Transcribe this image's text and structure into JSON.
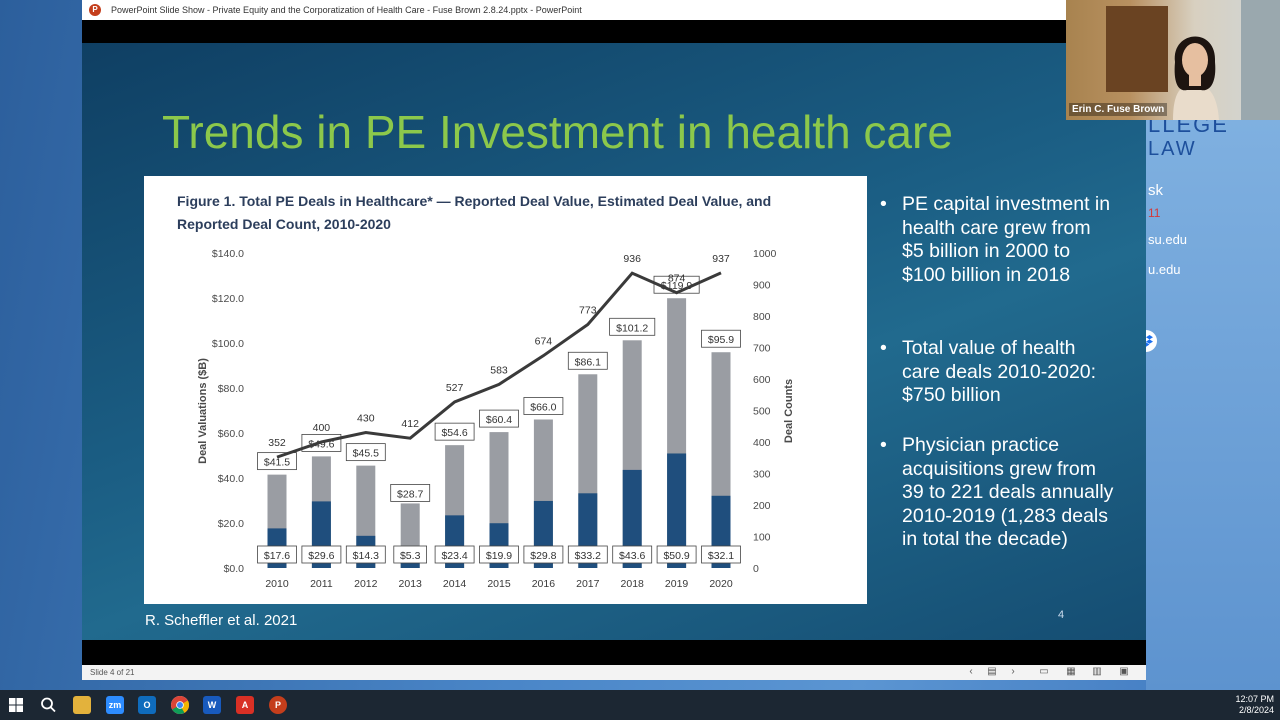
{
  "desktop_bg": {
    "college": "LLEGE",
    "law": "LAW",
    "line1": "sk",
    "line2": "11",
    "line3": "su.edu",
    "line4": "u.edu"
  },
  "ppt": {
    "title": "PowerPoint Slide Show  -  Private Equity and the Corporatization of Health Care - Fuse Brown 2.8.24.pptx  -  PowerPoint",
    "status": "Slide 4 of 21"
  },
  "slide": {
    "title": "Trends in PE Investment in health care",
    "bullets": [
      "PE capital investment in health care grew from $5 billion in 2000 to $100 billion in 2018",
      "Total value of health care deals 2010-2020: $750 billion",
      "Physician practice acquisitions grew from 39 to 221 deals annually 2010-2019 (1,283 deals in total the decade)"
    ],
    "citation": "R. Scheffler et al. 2021",
    "number": "4"
  },
  "figure": {
    "caption": "Figure 1. Total PE Deals in Healthcare* — Reported Deal Value, Estimated Deal Value, and Reported Deal Count, 2010-2020"
  },
  "chart_data": {
    "type": "bar",
    "categories": [
      "2010",
      "2011",
      "2012",
      "2013",
      "2014",
      "2015",
      "2016",
      "2017",
      "2018",
      "2019",
      "2020"
    ],
    "series": [
      {
        "values": [
          17.6,
          29.6,
          14.3,
          5.3,
          23.4,
          19.9,
          29.8,
          33.2,
          43.6,
          50.9,
          32.1
        ],
        "color": "#1f4e7d"
      },
      {
        "values": [
          41.5,
          49.6,
          45.5,
          28.7,
          54.6,
          60.4,
          66.0,
          86.1,
          101.2,
          119.9,
          95.9
        ],
        "color": "#9a9da3"
      },
      {
        "type": "line",
        "axis": "right",
        "values": [
          352,
          400,
          430,
          412,
          527,
          583,
          674,
          773,
          936,
          874,
          937
        ],
        "color": "#3a3a3a"
      }
    ],
    "bar_labels_inner": [
      "$17.6",
      "$29.6",
      "$14.3",
      "$5.3",
      "$23.4",
      "$19.9",
      "$29.8",
      "$33.2",
      "$43.6",
      "$50.9",
      "$32.1"
    ],
    "bar_labels_total": [
      "$41.5",
      "$49.6",
      "$45.5",
      "$28.7",
      "$54.6",
      "$60.4",
      "$66.0",
      "$86.1",
      "$101.2",
      "$119.9",
      "$95.9"
    ],
    "ylabel": "Deal Valuations ($B)",
    "y2label": "Deal Counts",
    "ylim": [
      0,
      140
    ],
    "y2lim": [
      0,
      1000
    ],
    "yticks": [
      "$0.0",
      "$20.0",
      "$40.0",
      "$60.0",
      "$80.0",
      "$100.0",
      "$120.0",
      "$140.0"
    ],
    "yticks_values": [
      0,
      20,
      40,
      60,
      80,
      100,
      120,
      140
    ],
    "y2ticks": [
      "0",
      "100",
      "200",
      "300",
      "400",
      "500",
      "600",
      "700",
      "800",
      "900",
      "1000"
    ],
    "y2ticks_values": [
      0,
      100,
      200,
      300,
      400,
      500,
      600,
      700,
      800,
      900,
      1000
    ],
    "grid": false
  },
  "video": {
    "name": "Erin C. Fuse Brown"
  },
  "taskbar": {
    "time": "12:07 PM",
    "date": "2/8/2024"
  }
}
